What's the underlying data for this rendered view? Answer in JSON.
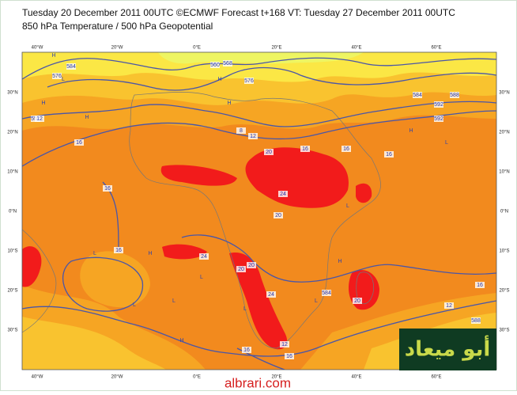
{
  "header": {
    "line1": "Tuesday 20 December 2011 00UTC ©ECMWF Forecast t+168 VT: Tuesday 27 December 2011 00UTC",
    "line2": "850 hPa Temperature / 500 hPa Geopotential"
  },
  "map": {
    "lon_labels": [
      "40°W",
      "20°W",
      "0°E",
      "20°E",
      "40°E",
      "60°E"
    ],
    "lat_labels": [
      "30°N",
      "20°N",
      "10°N",
      "0°N",
      "10°S",
      "20°S",
      "30°S"
    ],
    "contour_labels": [
      "576",
      "584",
      "552",
      "560",
      "568",
      "576",
      "584",
      "592",
      "592",
      "588",
      "16",
      "12",
      "8",
      "12",
      "16",
      "20",
      "16",
      "20",
      "24",
      "16",
      "16",
      "16",
      "24",
      "20",
      "20",
      "24",
      "20",
      "584",
      "16",
      "12",
      "588",
      "16",
      "16",
      "12"
    ],
    "pressure_labels": [
      "H",
      "L",
      "H",
      "H",
      "L",
      "H",
      "L",
      "H",
      "L",
      "H",
      "L",
      "H",
      "L",
      "L",
      "H",
      "L",
      "H",
      "L"
    ]
  },
  "watermark": {
    "arabic": "أبو ميعاد",
    "site": "albrari.com"
  }
}
